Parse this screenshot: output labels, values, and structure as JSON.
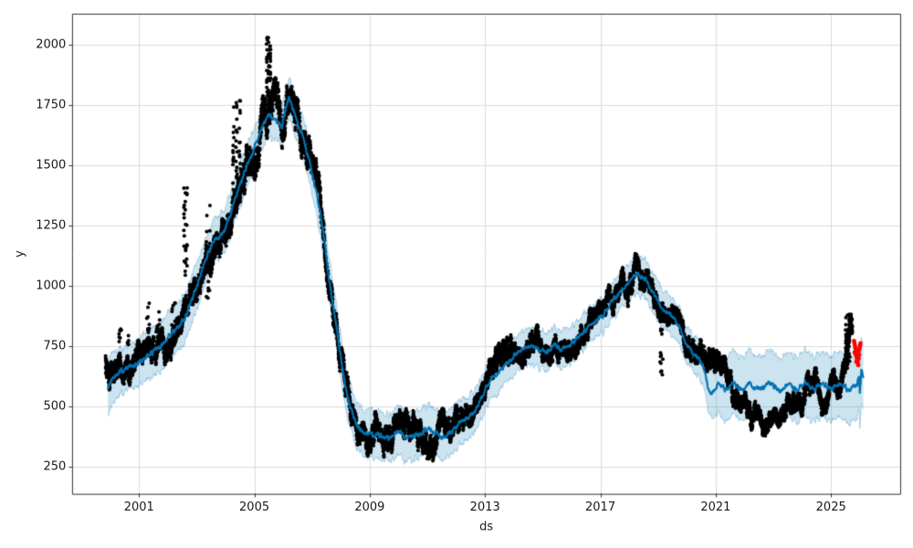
{
  "chart_data": {
    "type": "scatter",
    "title": "",
    "xlabel": "ds",
    "ylabel": "y",
    "x_ticks": [
      2001,
      2005,
      2009,
      2013,
      2017,
      2021,
      2025
    ],
    "y_ticks": [
      250,
      500,
      750,
      1000,
      1250,
      1500,
      1750,
      2000
    ],
    "xlim": [
      1998.69,
      2027.4
    ],
    "ylim": [
      138,
      2130
    ],
    "grid": true,
    "legend": "none",
    "colors": {
      "points": "#000000",
      "recent_points": "#ff0000",
      "forecast_line": "#0072B2",
      "uncertainty_band": "rgba(0,114,178,0.2)",
      "grid": "#dcdcdc",
      "spine": "#333333",
      "background": "#ffffff"
    },
    "marker": {
      "radius": 2.0,
      "recent_radius": 2.4
    },
    "series": {
      "forecast_line_anchors": [
        [
          1999.92,
          577
        ],
        [
          2000.1,
          622
        ],
        [
          2000.3,
          640
        ],
        [
          2000.55,
          658
        ],
        [
          2000.8,
          668
        ],
        [
          2001.1,
          690
        ],
        [
          2001.45,
          725
        ],
        [
          2001.75,
          750
        ],
        [
          2002.0,
          787
        ],
        [
          2002.3,
          825
        ],
        [
          2002.6,
          870
        ],
        [
          2002.85,
          950
        ],
        [
          2003.05,
          1015
        ],
        [
          2003.3,
          1105
        ],
        [
          2003.56,
          1185
        ],
        [
          2003.88,
          1210
        ],
        [
          2004.1,
          1270
        ],
        [
          2004.5,
          1420
        ],
        [
          2004.95,
          1560
        ],
        [
          2005.25,
          1655
        ],
        [
          2005.5,
          1712
        ],
        [
          2005.7,
          1690
        ],
        [
          2005.95,
          1660
        ],
        [
          2006.2,
          1790
        ],
        [
          2006.45,
          1690
        ],
        [
          2006.65,
          1630
        ],
        [
          2006.9,
          1525
        ],
        [
          2007.15,
          1390
        ],
        [
          2007.4,
          1220
        ],
        [
          2007.6,
          1020
        ],
        [
          2007.75,
          900
        ],
        [
          2007.9,
          790
        ],
        [
          2008.05,
          660
        ],
        [
          2008.2,
          560
        ],
        [
          2008.4,
          470
        ],
        [
          2008.6,
          415
        ],
        [
          2008.8,
          385
        ],
        [
          2009.1,
          385
        ],
        [
          2009.4,
          378
        ],
        [
          2009.7,
          368
        ],
        [
          2010.0,
          395
        ],
        [
          2010.3,
          368
        ],
        [
          2010.7,
          385
        ],
        [
          2011.05,
          412
        ],
        [
          2011.3,
          390
        ],
        [
          2011.5,
          368
        ],
        [
          2011.9,
          400
        ],
        [
          2012.1,
          430
        ],
        [
          2012.4,
          456
        ],
        [
          2012.64,
          476
        ],
        [
          2012.9,
          540
        ],
        [
          2013.1,
          596
        ],
        [
          2013.6,
          658
        ],
        [
          2014.0,
          710
        ],
        [
          2014.3,
          736
        ],
        [
          2014.63,
          754
        ],
        [
          2015.1,
          722
        ],
        [
          2015.42,
          754
        ],
        [
          2015.65,
          735
        ],
        [
          2015.9,
          748
        ],
        [
          2016.26,
          790
        ],
        [
          2016.63,
          836
        ],
        [
          2017.1,
          880
        ],
        [
          2017.42,
          942
        ],
        [
          2017.74,
          980
        ],
        [
          2018.0,
          1020
        ],
        [
          2018.3,
          1050
        ],
        [
          2018.58,
          1025
        ],
        [
          2018.85,
          968
        ],
        [
          2019.11,
          905
        ],
        [
          2019.43,
          880
        ],
        [
          2019.74,
          836
        ],
        [
          2019.95,
          760
        ],
        [
          2020.27,
          716
        ],
        [
          2020.45,
          690
        ],
        [
          2020.62,
          640
        ],
        [
          2020.78,
          560
        ],
        [
          2020.95,
          562
        ],
        [
          2021.1,
          595
        ],
        [
          2021.35,
          570
        ],
        [
          2021.6,
          600
        ],
        [
          2021.9,
          565
        ],
        [
          2022.2,
          595
        ],
        [
          2022.5,
          570
        ],
        [
          2022.9,
          600
        ],
        [
          2023.2,
          565
        ],
        [
          2023.5,
          595
        ],
        [
          2023.8,
          570
        ],
        [
          2024.1,
          600
        ],
        [
          2024.4,
          568
        ],
        [
          2024.7,
          598
        ],
        [
          2025.0,
          572
        ],
        [
          2025.3,
          600
        ],
        [
          2025.6,
          570
        ],
        [
          2025.9,
          595
        ],
        [
          2025.97,
          618
        ],
        [
          2026.0,
          552
        ],
        [
          2026.05,
          655
        ],
        [
          2026.12,
          622
        ]
      ],
      "band_halfwidth_anchors": [
        [
          1999.92,
          112
        ],
        [
          2000.5,
          88
        ],
        [
          2001.0,
          102
        ],
        [
          2002.0,
          105
        ],
        [
          2003.0,
          95
        ],
        [
          2004.0,
          90
        ],
        [
          2005.0,
          88
        ],
        [
          2005.5,
          85
        ],
        [
          2006.5,
          88
        ],
        [
          2007.5,
          90
        ],
        [
          2008.5,
          95
        ],
        [
          2009.5,
          100
        ],
        [
          2010.5,
          98
        ],
        [
          2011.5,
          98
        ],
        [
          2012.5,
          88
        ],
        [
          2013.5,
          80
        ],
        [
          2014.5,
          75
        ],
        [
          2015.5,
          75
        ],
        [
          2016.5,
          72
        ],
        [
          2017.5,
          72
        ],
        [
          2018.3,
          80
        ],
        [
          2019.0,
          80
        ],
        [
          2019.7,
          78
        ],
        [
          2020.3,
          75
        ],
        [
          2020.62,
          78
        ],
        [
          2020.9,
          108
        ],
        [
          2021.3,
          132
        ],
        [
          2022.0,
          133
        ],
        [
          2023.0,
          134
        ],
        [
          2024.0,
          134
        ],
        [
          2025.0,
          134
        ],
        [
          2026.12,
          138
        ]
      ],
      "observed_center_anchors": [
        [
          1999.84,
          655
        ],
        [
          2000.1,
          630
        ],
        [
          2000.4,
          648
        ],
        [
          2000.7,
          662
        ],
        [
          2001.0,
          688
        ],
        [
          2001.35,
          710
        ],
        [
          2001.7,
          735
        ],
        [
          2002.1,
          775
        ],
        [
          2002.45,
          830
        ],
        [
          2002.75,
          890
        ],
        [
          2003.05,
          960
        ],
        [
          2003.3,
          1085
        ],
        [
          2003.6,
          1180
        ],
        [
          2003.9,
          1190
        ],
        [
          2004.2,
          1270
        ],
        [
          2004.5,
          1420
        ],
        [
          2004.8,
          1490
        ],
        [
          2005.1,
          1590
        ],
        [
          2005.3,
          1730
        ],
        [
          2005.5,
          1800
        ],
        [
          2005.8,
          1725
        ],
        [
          2005.92,
          1715
        ],
        [
          2006.0,
          1730
        ],
        [
          2006.2,
          1780
        ],
        [
          2006.4,
          1700
        ],
        [
          2006.6,
          1640
        ],
        [
          2006.85,
          1560
        ],
        [
          2007.1,
          1440
        ],
        [
          2007.35,
          1270
        ],
        [
          2007.6,
          1040
        ],
        [
          2007.8,
          880
        ],
        [
          2008.0,
          710
        ],
        [
          2008.2,
          570
        ],
        [
          2008.45,
          465
        ],
        [
          2008.7,
          405
        ],
        [
          2008.9,
          385
        ],
        [
          2009.2,
          390
        ],
        [
          2009.5,
          380
        ],
        [
          2009.8,
          420
        ],
        [
          2010.1,
          380
        ],
        [
          2010.4,
          400
        ],
        [
          2010.9,
          365
        ],
        [
          2011.3,
          420
        ],
        [
          2011.8,
          380
        ],
        [
          2012.2,
          450
        ],
        [
          2012.6,
          490
        ],
        [
          2013.0,
          580
        ],
        [
          2013.4,
          645
        ],
        [
          2013.8,
          700
        ],
        [
          2014.3,
          740
        ],
        [
          2014.7,
          750
        ],
        [
          2015.1,
          715
        ],
        [
          2015.5,
          750
        ],
        [
          2015.9,
          740
        ],
        [
          2016.3,
          790
        ],
        [
          2016.7,
          840
        ],
        [
          2017.1,
          885
        ],
        [
          2017.5,
          950
        ],
        [
          2017.9,
          1005
        ],
        [
          2018.2,
          1060
        ],
        [
          2018.5,
          1030
        ],
        [
          2018.9,
          960
        ],
        [
          2019.2,
          900
        ],
        [
          2019.5,
          880
        ],
        [
          2019.8,
          825
        ],
        [
          2020.1,
          730
        ],
        [
          2020.4,
          700
        ],
        [
          2020.85,
          690
        ],
        [
          2021.15,
          665
        ],
        [
          2021.45,
          620
        ],
        [
          2021.8,
          545
        ],
        [
          2022.2,
          490
        ],
        [
          2022.5,
          440
        ],
        [
          2022.75,
          405
        ],
        [
          2023.3,
          460
        ],
        [
          2023.8,
          500
        ],
        [
          2024.2,
          600
        ],
        [
          2024.5,
          560
        ],
        [
          2024.8,
          505
        ],
        [
          2025.05,
          580
        ],
        [
          2025.25,
          610
        ],
        [
          2025.4,
          650
        ],
        [
          2025.55,
          740
        ],
        [
          2025.68,
          790
        ],
        [
          2025.74,
          800
        ]
      ],
      "observed_spread_anchors": [
        [
          1999.9,
          40
        ],
        [
          2002.0,
          42
        ],
        [
          2003.5,
          48
        ],
        [
          2004.4,
          58
        ],
        [
          2005.0,
          58
        ],
        [
          2005.6,
          66
        ],
        [
          2006.6,
          58
        ],
        [
          2007.5,
          48
        ],
        [
          2008.1,
          48
        ],
        [
          2008.5,
          40
        ],
        [
          2009.5,
          45
        ],
        [
          2011.0,
          45
        ],
        [
          2012.5,
          45
        ],
        [
          2013.5,
          40
        ],
        [
          2015.0,
          36
        ],
        [
          2017.0,
          36
        ],
        [
          2018.3,
          40
        ],
        [
          2019.5,
          34
        ],
        [
          2020.7,
          40
        ],
        [
          2021.0,
          42
        ],
        [
          2022.0,
          34
        ],
        [
          2023.0,
          32
        ],
        [
          2024.0,
          37
        ],
        [
          2025.0,
          34
        ],
        [
          2025.74,
          46
        ]
      ],
      "outlier_columns": [
        [
          2000.3,
          2000.38,
          760,
          835,
          8
        ],
        [
          2000.6,
          2000.66,
          752,
          800,
          5
        ],
        [
          2001.24,
          2001.36,
          800,
          945,
          10
        ],
        [
          2001.58,
          2001.72,
          800,
          905,
          9
        ],
        [
          2002.13,
          2002.28,
          820,
          935,
          9
        ],
        [
          2002.55,
          2002.7,
          1040,
          1455,
          26
        ],
        [
          2003.33,
          2003.5,
          950,
          1365,
          20
        ],
        [
          2004.25,
          2004.58,
          1380,
          1770,
          44
        ],
        [
          2005.42,
          2005.6,
          1780,
          2035,
          45
        ],
        [
          2019.06,
          2019.18,
          612,
          850,
          13
        ],
        [
          2025.5,
          2025.68,
          655,
          886,
          36
        ]
      ],
      "recent_points": [
        [
          2025.8,
          772
        ],
        [
          2025.815,
          762
        ],
        [
          2025.83,
          752
        ],
        [
          2025.845,
          742
        ],
        [
          2025.86,
          733
        ],
        [
          2025.815,
          725
        ],
        [
          2025.87,
          716
        ],
        [
          2025.885,
          708
        ],
        [
          2025.9,
          699
        ],
        [
          2025.915,
          690
        ],
        [
          2025.93,
          681
        ],
        [
          2025.945,
          672
        ],
        [
          2025.88,
          686
        ],
        [
          2025.96,
          700
        ],
        [
          2025.975,
          715
        ],
        [
          2025.96,
          730
        ],
        [
          2025.99,
          740
        ],
        [
          2026.005,
          752
        ],
        [
          2026.02,
          762
        ]
      ],
      "points_start": 1999.84,
      "points_end": 2025.74,
      "points_per_year": 430,
      "line_start": 1999.92,
      "line_end": 2026.12,
      "noise_seed": 42
    }
  }
}
